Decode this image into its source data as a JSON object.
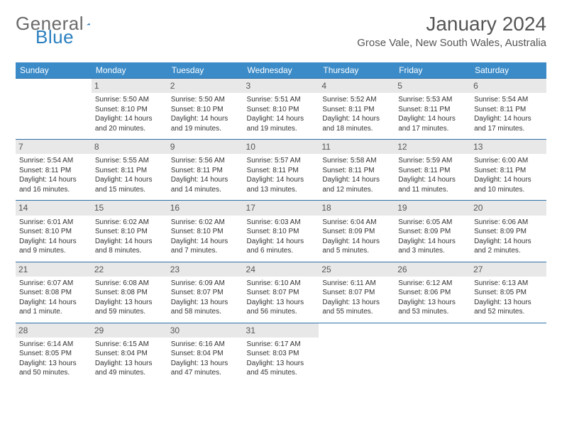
{
  "logo": {
    "word1": "General",
    "word2": "Blue"
  },
  "header": {
    "title": "January 2024",
    "location": "Grose Vale, New South Wales, Australia"
  },
  "style": {
    "header_bg": "#3b8bc8",
    "header_fg": "#ffffff",
    "daynum_bg": "#e8e8e8",
    "row_border": "#2a6fa8",
    "page_bg": "#ffffff",
    "text_color": "#333333"
  },
  "weekdays": [
    "Sunday",
    "Monday",
    "Tuesday",
    "Wednesday",
    "Thursday",
    "Friday",
    "Saturday"
  ],
  "weeks": [
    [
      null,
      {
        "n": "1",
        "l1": "Sunrise: 5:50 AM",
        "l2": "Sunset: 8:10 PM",
        "l3": "Daylight: 14 hours",
        "l4": "and 20 minutes."
      },
      {
        "n": "2",
        "l1": "Sunrise: 5:50 AM",
        "l2": "Sunset: 8:10 PM",
        "l3": "Daylight: 14 hours",
        "l4": "and 19 minutes."
      },
      {
        "n": "3",
        "l1": "Sunrise: 5:51 AM",
        "l2": "Sunset: 8:10 PM",
        "l3": "Daylight: 14 hours",
        "l4": "and 19 minutes."
      },
      {
        "n": "4",
        "l1": "Sunrise: 5:52 AM",
        "l2": "Sunset: 8:11 PM",
        "l3": "Daylight: 14 hours",
        "l4": "and 18 minutes."
      },
      {
        "n": "5",
        "l1": "Sunrise: 5:53 AM",
        "l2": "Sunset: 8:11 PM",
        "l3": "Daylight: 14 hours",
        "l4": "and 17 minutes."
      },
      {
        "n": "6",
        "l1": "Sunrise: 5:54 AM",
        "l2": "Sunset: 8:11 PM",
        "l3": "Daylight: 14 hours",
        "l4": "and 17 minutes."
      }
    ],
    [
      {
        "n": "7",
        "l1": "Sunrise: 5:54 AM",
        "l2": "Sunset: 8:11 PM",
        "l3": "Daylight: 14 hours",
        "l4": "and 16 minutes."
      },
      {
        "n": "8",
        "l1": "Sunrise: 5:55 AM",
        "l2": "Sunset: 8:11 PM",
        "l3": "Daylight: 14 hours",
        "l4": "and 15 minutes."
      },
      {
        "n": "9",
        "l1": "Sunrise: 5:56 AM",
        "l2": "Sunset: 8:11 PM",
        "l3": "Daylight: 14 hours",
        "l4": "and 14 minutes."
      },
      {
        "n": "10",
        "l1": "Sunrise: 5:57 AM",
        "l2": "Sunset: 8:11 PM",
        "l3": "Daylight: 14 hours",
        "l4": "and 13 minutes."
      },
      {
        "n": "11",
        "l1": "Sunrise: 5:58 AM",
        "l2": "Sunset: 8:11 PM",
        "l3": "Daylight: 14 hours",
        "l4": "and 12 minutes."
      },
      {
        "n": "12",
        "l1": "Sunrise: 5:59 AM",
        "l2": "Sunset: 8:11 PM",
        "l3": "Daylight: 14 hours",
        "l4": "and 11 minutes."
      },
      {
        "n": "13",
        "l1": "Sunrise: 6:00 AM",
        "l2": "Sunset: 8:11 PM",
        "l3": "Daylight: 14 hours",
        "l4": "and 10 minutes."
      }
    ],
    [
      {
        "n": "14",
        "l1": "Sunrise: 6:01 AM",
        "l2": "Sunset: 8:10 PM",
        "l3": "Daylight: 14 hours",
        "l4": "and 9 minutes."
      },
      {
        "n": "15",
        "l1": "Sunrise: 6:02 AM",
        "l2": "Sunset: 8:10 PM",
        "l3": "Daylight: 14 hours",
        "l4": "and 8 minutes."
      },
      {
        "n": "16",
        "l1": "Sunrise: 6:02 AM",
        "l2": "Sunset: 8:10 PM",
        "l3": "Daylight: 14 hours",
        "l4": "and 7 minutes."
      },
      {
        "n": "17",
        "l1": "Sunrise: 6:03 AM",
        "l2": "Sunset: 8:10 PM",
        "l3": "Daylight: 14 hours",
        "l4": "and 6 minutes."
      },
      {
        "n": "18",
        "l1": "Sunrise: 6:04 AM",
        "l2": "Sunset: 8:09 PM",
        "l3": "Daylight: 14 hours",
        "l4": "and 5 minutes."
      },
      {
        "n": "19",
        "l1": "Sunrise: 6:05 AM",
        "l2": "Sunset: 8:09 PM",
        "l3": "Daylight: 14 hours",
        "l4": "and 3 minutes."
      },
      {
        "n": "20",
        "l1": "Sunrise: 6:06 AM",
        "l2": "Sunset: 8:09 PM",
        "l3": "Daylight: 14 hours",
        "l4": "and 2 minutes."
      }
    ],
    [
      {
        "n": "21",
        "l1": "Sunrise: 6:07 AM",
        "l2": "Sunset: 8:08 PM",
        "l3": "Daylight: 14 hours",
        "l4": "and 1 minute."
      },
      {
        "n": "22",
        "l1": "Sunrise: 6:08 AM",
        "l2": "Sunset: 8:08 PM",
        "l3": "Daylight: 13 hours",
        "l4": "and 59 minutes."
      },
      {
        "n": "23",
        "l1": "Sunrise: 6:09 AM",
        "l2": "Sunset: 8:07 PM",
        "l3": "Daylight: 13 hours",
        "l4": "and 58 minutes."
      },
      {
        "n": "24",
        "l1": "Sunrise: 6:10 AM",
        "l2": "Sunset: 8:07 PM",
        "l3": "Daylight: 13 hours",
        "l4": "and 56 minutes."
      },
      {
        "n": "25",
        "l1": "Sunrise: 6:11 AM",
        "l2": "Sunset: 8:07 PM",
        "l3": "Daylight: 13 hours",
        "l4": "and 55 minutes."
      },
      {
        "n": "26",
        "l1": "Sunrise: 6:12 AM",
        "l2": "Sunset: 8:06 PM",
        "l3": "Daylight: 13 hours",
        "l4": "and 53 minutes."
      },
      {
        "n": "27",
        "l1": "Sunrise: 6:13 AM",
        "l2": "Sunset: 8:05 PM",
        "l3": "Daylight: 13 hours",
        "l4": "and 52 minutes."
      }
    ],
    [
      {
        "n": "28",
        "l1": "Sunrise: 6:14 AM",
        "l2": "Sunset: 8:05 PM",
        "l3": "Daylight: 13 hours",
        "l4": "and 50 minutes."
      },
      {
        "n": "29",
        "l1": "Sunrise: 6:15 AM",
        "l2": "Sunset: 8:04 PM",
        "l3": "Daylight: 13 hours",
        "l4": "and 49 minutes."
      },
      {
        "n": "30",
        "l1": "Sunrise: 6:16 AM",
        "l2": "Sunset: 8:04 PM",
        "l3": "Daylight: 13 hours",
        "l4": "and 47 minutes."
      },
      {
        "n": "31",
        "l1": "Sunrise: 6:17 AM",
        "l2": "Sunset: 8:03 PM",
        "l3": "Daylight: 13 hours",
        "l4": "and 45 minutes."
      },
      null,
      null,
      null
    ]
  ]
}
